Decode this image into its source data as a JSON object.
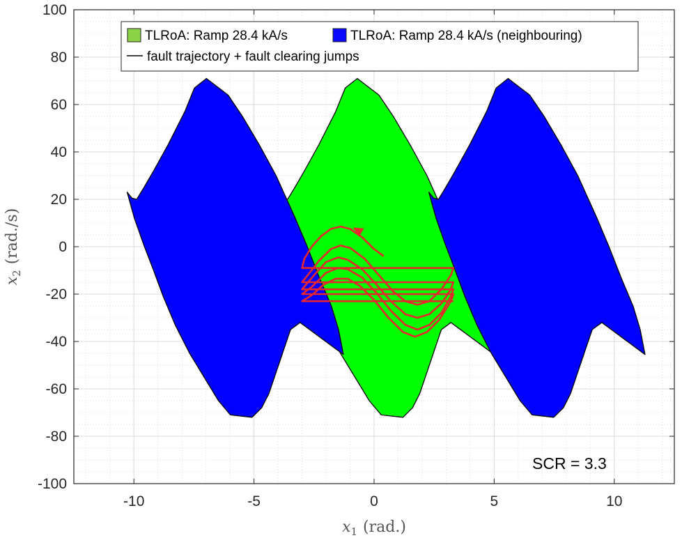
{
  "chart_data": {
    "type": "area",
    "xlim": [
      -12.5,
      12.5
    ],
    "ylim": [
      -100,
      100
    ],
    "x_ticks": [
      -10,
      -5,
      0,
      5,
      10
    ],
    "y_ticks": [
      100,
      80,
      60,
      40,
      20,
      0,
      -20,
      -40,
      -60,
      -80,
      -100
    ],
    "x_tick_labels": [
      "-10",
      "-5",
      "0",
      "5",
      "10"
    ],
    "y_tick_labels": [
      "100",
      "80",
      "60",
      "40",
      "20",
      "0",
      "-20",
      "-40",
      "-60",
      "-80",
      "-100"
    ],
    "xlabel_sym": "x",
    "xlabel_sub": "1",
    "xlabel_unit": "(rad.)",
    "ylabel_sym": "x",
    "ylabel_sub": "2",
    "ylabel_unit": "(rad./s)",
    "grid": true,
    "minor_grid": true,
    "legend_position": "top",
    "legend": [
      {
        "label": "TLRoA: Ramp 28.4 kA/s",
        "kind": "patch",
        "color": "#8bd247"
      },
      {
        "label": "TLRoA: Ramp 28.4 kA/s (neighbouring)",
        "kind": "patch",
        "color": "#0a0aff"
      },
      {
        "label": "fault trajectory + fault clearing jumps",
        "kind": "line",
        "color": "#000000"
      }
    ],
    "annotation": "SCR = 3.3",
    "colors": {
      "green_region": "#00ff00",
      "blue_region": "#0000ff",
      "trajectory": "#e8262e",
      "edge": "#000000"
    },
    "series": [
      {
        "name": "TLRoA: Ramp 28.4 kA/s",
        "offset": 0,
        "color": "#00ff00",
        "boundary": [
          [
            -4.0,
            23.0
          ],
          [
            -3.8,
            20.5
          ],
          [
            -3.6,
            20.0
          ],
          [
            -3.3,
            25.0
          ],
          [
            -2.9,
            32.0
          ],
          [
            -2.3,
            43.0
          ],
          [
            -1.6,
            57.0
          ],
          [
            -1.2,
            67.0
          ],
          [
            -0.7,
            71.0
          ],
          [
            0.2,
            64.0
          ],
          [
            0.8,
            55.0
          ],
          [
            1.5,
            43.0
          ],
          [
            2.2,
            30.0
          ],
          [
            2.6,
            21.0
          ],
          [
            3.0,
            12.0
          ],
          [
            3.5,
            0.0
          ],
          [
            4.0,
            -13.0
          ],
          [
            4.5,
            -25.0
          ],
          [
            4.8,
            -35.0
          ],
          [
            5.0,
            -45.5
          ],
          [
            4.0,
            -38.0
          ],
          [
            3.2,
            -32.0
          ],
          [
            2.8,
            -35.0
          ],
          [
            2.5,
            -44.0
          ],
          [
            2.1,
            -56.0
          ],
          [
            1.9,
            -62.0
          ],
          [
            1.6,
            -68.0
          ],
          [
            1.2,
            -72.0
          ],
          [
            0.3,
            -71.0
          ],
          [
            -0.2,
            -65.0
          ],
          [
            -0.8,
            -55.0
          ],
          [
            -1.4,
            -45.0
          ],
          [
            -2.0,
            -33.0
          ],
          [
            -2.5,
            -21.0
          ],
          [
            -2.9,
            -10.0
          ],
          [
            -3.3,
            0.5
          ],
          [
            -3.7,
            12.0
          ]
        ]
      },
      {
        "name": "TLRoA: Ramp 28.4 kA/s (neighbouring)",
        "offset": -6.28,
        "color": "#0000ff",
        "boundary": [
          [
            -4.0,
            23.0
          ],
          [
            -3.8,
            20.5
          ],
          [
            -3.6,
            20.0
          ],
          [
            -3.3,
            25.0
          ],
          [
            -2.9,
            32.0
          ],
          [
            -2.3,
            43.0
          ],
          [
            -1.6,
            57.0
          ],
          [
            -1.2,
            67.0
          ],
          [
            -0.7,
            71.0
          ],
          [
            0.2,
            64.0
          ],
          [
            0.8,
            55.0
          ],
          [
            1.5,
            43.0
          ],
          [
            2.2,
            30.0
          ],
          [
            2.6,
            21.0
          ],
          [
            3.0,
            12.0
          ],
          [
            3.5,
            0.0
          ],
          [
            4.0,
            -13.0
          ],
          [
            4.5,
            -25.0
          ],
          [
            4.8,
            -35.0
          ],
          [
            5.0,
            -45.5
          ],
          [
            4.0,
            -38.0
          ],
          [
            3.2,
            -32.0
          ],
          [
            2.8,
            -35.0
          ],
          [
            2.5,
            -44.0
          ],
          [
            2.1,
            -56.0
          ],
          [
            1.9,
            -62.0
          ],
          [
            1.6,
            -68.0
          ],
          [
            1.2,
            -72.0
          ],
          [
            0.3,
            -71.0
          ],
          [
            -0.2,
            -65.0
          ],
          [
            -0.8,
            -55.0
          ],
          [
            -1.4,
            -45.0
          ],
          [
            -2.0,
            -33.0
          ],
          [
            -2.5,
            -21.0
          ],
          [
            -2.9,
            -10.0
          ],
          [
            -3.3,
            0.5
          ],
          [
            -3.7,
            12.0
          ]
        ]
      },
      {
        "name": "TLRoA: Ramp 28.4 kA/s (neighbouring)",
        "offset": 6.28,
        "color": "#0000ff",
        "boundary": [
          [
            -4.0,
            23.0
          ],
          [
            -3.8,
            20.5
          ],
          [
            -3.6,
            20.0
          ],
          [
            -3.3,
            25.0
          ],
          [
            -2.9,
            32.0
          ],
          [
            -2.3,
            43.0
          ],
          [
            -1.6,
            57.0
          ],
          [
            -1.2,
            67.0
          ],
          [
            -0.7,
            71.0
          ],
          [
            0.2,
            64.0
          ],
          [
            0.8,
            55.0
          ],
          [
            1.5,
            43.0
          ],
          [
            2.2,
            30.0
          ],
          [
            2.6,
            21.0
          ],
          [
            3.0,
            12.0
          ],
          [
            3.5,
            0.0
          ],
          [
            4.0,
            -13.0
          ],
          [
            4.5,
            -25.0
          ],
          [
            4.8,
            -35.0
          ],
          [
            5.0,
            -45.5
          ],
          [
            4.0,
            -38.0
          ],
          [
            3.2,
            -32.0
          ],
          [
            2.8,
            -35.0
          ],
          [
            2.5,
            -44.0
          ],
          [
            2.1,
            -56.0
          ],
          [
            1.9,
            -62.0
          ],
          [
            1.6,
            -68.0
          ],
          [
            1.2,
            -72.0
          ],
          [
            0.3,
            -71.0
          ],
          [
            -0.2,
            -65.0
          ],
          [
            -0.8,
            -55.0
          ],
          [
            -1.4,
            -45.0
          ],
          [
            -2.0,
            -33.0
          ],
          [
            -2.5,
            -21.0
          ],
          [
            -2.9,
            -10.0
          ],
          [
            -3.3,
            0.5
          ],
          [
            -3.7,
            12.0
          ]
        ]
      }
    ],
    "trajectory": [
      [
        [
          0.4,
          -4.0
        ],
        [
          0.0,
          -1.0
        ],
        [
          -0.5,
          4.0
        ],
        [
          -1.0,
          7.5
        ],
        [
          -1.4,
          8.5
        ],
        [
          -1.8,
          7.5
        ],
        [
          -2.2,
          4.5
        ],
        [
          -2.6,
          0.0
        ],
        [
          -2.9,
          -5.0
        ],
        [
          -3.0,
          -9.0
        ],
        [
          3.3,
          -9.0
        ],
        [
          3.2,
          -12.0
        ],
        [
          2.8,
          -18.0
        ],
        [
          2.3,
          -23.0
        ],
        [
          1.8,
          -24.5
        ],
        [
          1.3,
          -23.0
        ],
        [
          0.8,
          -19.0
        ],
        [
          0.2,
          -12.0
        ],
        [
          -0.4,
          -5.0
        ],
        [
          -1.0,
          -0.5
        ],
        [
          -1.4,
          0.5
        ],
        [
          -1.8,
          -1.0
        ],
        [
          -2.3,
          -6.0
        ],
        [
          -2.8,
          -12.5
        ],
        [
          -3.0,
          -15.0
        ],
        [
          3.3,
          -15.0
        ],
        [
          3.2,
          -18.0
        ],
        [
          2.8,
          -24.0
        ],
        [
          2.3,
          -28.5
        ],
        [
          1.8,
          -30.0
        ],
        [
          1.3,
          -28.5
        ],
        [
          0.7,
          -23.0
        ],
        [
          0.1,
          -16.0
        ],
        [
          -0.5,
          -9.5
        ],
        [
          -1.1,
          -5.5
        ],
        [
          -1.5,
          -4.5
        ],
        [
          -2.0,
          -6.5
        ],
        [
          -2.5,
          -12.0
        ],
        [
          -3.0,
          -18.0
        ],
        [
          3.3,
          -18.0
        ],
        [
          3.2,
          -21.0
        ],
        [
          2.8,
          -28.0
        ],
        [
          2.3,
          -33.0
        ],
        [
          1.8,
          -35.0
        ],
        [
          1.3,
          -33.0
        ],
        [
          0.7,
          -27.0
        ],
        [
          0.1,
          -19.5
        ],
        [
          -0.5,
          -13.0
        ],
        [
          -1.1,
          -9.5
        ],
        [
          -1.5,
          -9.0
        ],
        [
          -2.0,
          -11.0
        ],
        [
          -2.6,
          -17.0
        ],
        [
          -3.0,
          -20.0
        ],
        [
          3.3,
          -20.0
        ],
        [
          3.2,
          -23.0
        ],
        [
          2.7,
          -31.0
        ],
        [
          2.2,
          -36.0
        ],
        [
          1.7,
          -38.0
        ],
        [
          1.2,
          -36.0
        ],
        [
          0.6,
          -30.0
        ],
        [
          0.0,
          -22.5
        ],
        [
          -0.6,
          -16.5
        ],
        [
          -1.1,
          -13.5
        ],
        [
          -1.6,
          -13.5
        ],
        [
          -2.1,
          -16.0
        ],
        [
          -2.6,
          -20.5
        ],
        [
          -3.0,
          -23.0
        ],
        [
          3.3,
          -23.0
        ]
      ]
    ],
    "trajectory_arrow": {
      "at": [
        -0.7,
        7.0
      ],
      "direction": [
        -1,
        0.6
      ]
    }
  }
}
